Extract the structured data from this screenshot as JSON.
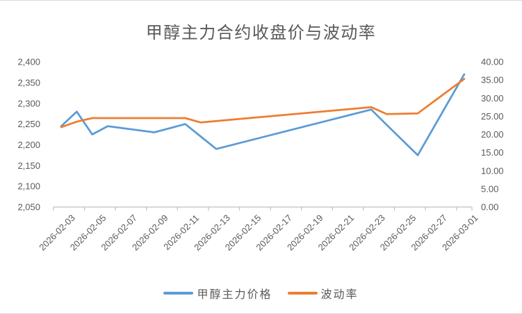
{
  "title": "甲醇主力合约收盘价与波动率",
  "colors": {
    "price": "#5B9BD5",
    "volatility": "#ED7D31",
    "axis_text": "#595959",
    "axis_line": "#BFBFBF",
    "title_text": "#595959"
  },
  "legend": [
    {
      "label": "甲醇主力价格",
      "series": "price"
    },
    {
      "label": "波动率",
      "series": "volatility"
    }
  ],
  "chart_data": {
    "type": "line",
    "title": "甲醇主力合约收盘价与波动率",
    "x_type": "daily-category",
    "x_range": [
      "2026-02-03",
      "2026-03-01"
    ],
    "x_days_total": 27,
    "x_tick_labels": [
      "2026-02-03",
      "2026-02-05",
      "2026-02-07",
      "2026-02-09",
      "2026-02-11",
      "2026-02-13",
      "2026-02-15",
      "2026-02-17",
      "2026-02-19",
      "2026-02-21",
      "2026-02-23",
      "2026-02-25",
      "2026-02-27",
      "2026-03-01"
    ],
    "left_axis": {
      "min": 2050,
      "max": 2400,
      "step": 50,
      "tick_labels": [
        "2,050",
        "2,100",
        "2,150",
        "2,200",
        "2,250",
        "2,300",
        "2,350",
        "2,400"
      ]
    },
    "right_axis": {
      "min": 0,
      "max": 40,
      "step": 5,
      "tick_labels": [
        "0.00",
        "5.00",
        "10.00",
        "15.00",
        "20.00",
        "25.00",
        "30.00",
        "35.00",
        "40.00"
      ]
    },
    "grid": false,
    "legend_position": "bottom",
    "series": [
      {
        "name": "甲醇主力价格",
        "axis": "left",
        "color": "#5B9BD5",
        "points": [
          {
            "date": "2026-02-03",
            "value": 2245
          },
          {
            "date": "2026-02-04",
            "value": 2280
          },
          {
            "date": "2026-02-05",
            "value": 2225
          },
          {
            "date": "2026-02-06",
            "value": 2245
          },
          {
            "date": "2026-02-09",
            "value": 2230
          },
          {
            "date": "2026-02-11",
            "value": 2250
          },
          {
            "date": "2026-02-12",
            "value": 2220
          },
          {
            "date": "2026-02-13",
            "value": 2190
          },
          {
            "date": "2026-02-23",
            "value": 2285
          },
          {
            "date": "2026-02-24",
            "value": 2248
          },
          {
            "date": "2026-02-26",
            "value": 2175
          },
          {
            "date": "2026-03-01",
            "value": 2370
          }
        ]
      },
      {
        "name": "波动率",
        "axis": "right",
        "color": "#ED7D31",
        "points": [
          {
            "date": "2026-02-03",
            "value": 22.0
          },
          {
            "date": "2026-02-04",
            "value": 23.5
          },
          {
            "date": "2026-02-05",
            "value": 24.5
          },
          {
            "date": "2026-02-06",
            "value": 24.5
          },
          {
            "date": "2026-02-09",
            "value": 24.5
          },
          {
            "date": "2026-02-11",
            "value": 24.5
          },
          {
            "date": "2026-02-12",
            "value": 23.3
          },
          {
            "date": "2026-02-13",
            "value": 23.7
          },
          {
            "date": "2026-02-23",
            "value": 27.5
          },
          {
            "date": "2026-02-24",
            "value": 25.6
          },
          {
            "date": "2026-02-26",
            "value": 25.8
          },
          {
            "date": "2026-03-01",
            "value": 35.3
          }
        ]
      }
    ]
  }
}
